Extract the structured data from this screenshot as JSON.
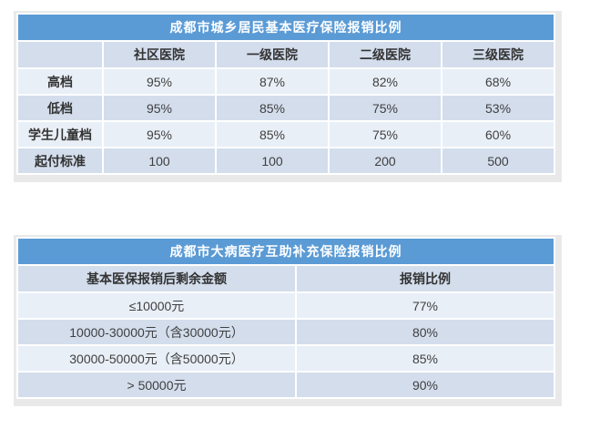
{
  "colors": {
    "title_bar_bg": "#5B9BD5",
    "title_text": "#FFFFFF",
    "header_row_bg": "#D3DDEC",
    "row_light_bg": "#E9EFF7",
    "row_dark_bg": "#D3DDEC",
    "frame_bg": "#EAE9E9",
    "separator": "#FFFFFF",
    "cell_text": "#3F3F3F"
  },
  "basic_table": {
    "title": "成都市城乡居民基本医疗保险报销比例",
    "columns": [
      "",
      "社区医院",
      "一级医院",
      "二级医院",
      "三级医院"
    ],
    "rows": [
      {
        "label": "高档",
        "values": [
          "95%",
          "87%",
          "82%",
          "68%"
        ]
      },
      {
        "label": "低档",
        "values": [
          "95%",
          "85%",
          "75%",
          "53%"
        ]
      },
      {
        "label": "学生儿童档",
        "values": [
          "95%",
          "85%",
          "75%",
          "60%"
        ]
      },
      {
        "label": "起付标准",
        "values": [
          "100",
          "100",
          "200",
          "500"
        ]
      }
    ]
  },
  "supp_table": {
    "title": "成都市大病医疗互助补充保险报销比例",
    "columns": [
      "基本医保报销后剩余金额",
      "报销比例"
    ],
    "rows": [
      {
        "label": "≤10000元",
        "value": "77%"
      },
      {
        "label": "10000-30000元（含30000元）",
        "value": "80%"
      },
      {
        "label": "30000-50000元（含50000元）",
        "value": "85%"
      },
      {
        "label": "> 50000元",
        "value": "90%"
      }
    ]
  },
  "chart_data": [
    {
      "type": "table",
      "title": "成都市城乡居民基本医疗保险报销比例",
      "columns": [
        "",
        "社区医院",
        "一级医院",
        "二级医院",
        "三级医院"
      ],
      "rows": [
        [
          "高档",
          "95%",
          "87%",
          "82%",
          "68%"
        ],
        [
          "低档",
          "95%",
          "85%",
          "75%",
          "53%"
        ],
        [
          "学生儿童档",
          "95%",
          "85%",
          "75%",
          "60%"
        ],
        [
          "起付标准",
          "100",
          "100",
          "200",
          "500"
        ]
      ]
    },
    {
      "type": "table",
      "title": "成都市大病医疗互助补充保险报销比例",
      "columns": [
        "基本医保报销后剩余金额",
        "报销比例"
      ],
      "rows": [
        [
          "≤10000元",
          "77%"
        ],
        [
          "10000-30000元（含30000元）",
          "80%"
        ],
        [
          "30000-50000元（含50000元）",
          "85%"
        ],
        [
          "> 50000元",
          "90%"
        ]
      ]
    }
  ]
}
